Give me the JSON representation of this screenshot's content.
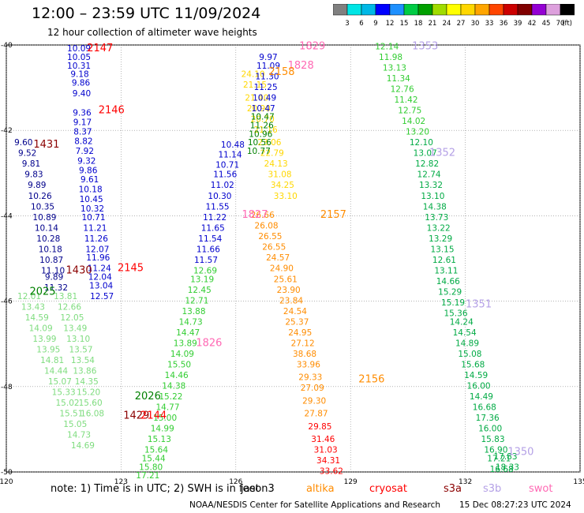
{
  "header": {
    "title": "12:00 – 23:59 UTC 11/09/2024",
    "subtitle": "12 hour collection of altimeter wave heights"
  },
  "colorbar": {
    "unit": "(ft)",
    "labels": [
      "3",
      "6",
      "9",
      "12",
      "15",
      "18",
      "21",
      "24",
      "27",
      "30",
      "33",
      "36",
      "39",
      "42",
      "45",
      "70"
    ],
    "colors": [
      "#808080",
      "#00e5e5",
      "#00b8e6",
      "#0000ff",
      "#1e90ff",
      "#00cc44",
      "#00a000",
      "#a0dc00",
      "#ffff00",
      "#ffd700",
      "#ffa500",
      "#ff4500",
      "#cc0000",
      "#800000",
      "#9400d3",
      "#dda0dd",
      "#000000"
    ]
  },
  "footer": {
    "note": "note:  1) Time is in UTC; 2) SWH is in feet",
    "missions": [
      {
        "name": "jason3",
        "color": "#000000"
      },
      {
        "name": "altika",
        "color": "#ff8c00"
      },
      {
        "name": "cryosat",
        "color": "#ff0000"
      },
      {
        "name": "s3a",
        "color": "#8b0000"
      },
      {
        "name": "s3b",
        "color": "#b4a0e6"
      },
      {
        "name": "swot",
        "color": "#ff69b4"
      }
    ],
    "credit": "NOAA/NESDIS Center for Satellite Applications and Research",
    "timestamp": "15 Dec 08:27:23 UTC 2024"
  },
  "chart_data": {
    "type": "scatter",
    "title": "12:00 – 23:59 UTC 11/09/2024",
    "subtitle": "12 hour collection of altimeter wave heights",
    "xlim": [
      120,
      135
    ],
    "ylim": [
      -50,
      -40
    ],
    "x_ticks": [
      120,
      123,
      126,
      129,
      132,
      135
    ],
    "y_ticks": [
      -40,
      -42,
      -44,
      -46,
      -48,
      -50
    ],
    "grid": true,
    "pass_labels": [
      {
        "text": "2147",
        "lon": 122.45,
        "lat": -40.15,
        "color": "#ff0000"
      },
      {
        "text": "2146",
        "lon": 122.75,
        "lat": -41.6,
        "color": "#ff0000"
      },
      {
        "text": "1431",
        "lon": 121.05,
        "lat": -42.4,
        "color": "#8b0000"
      },
      {
        "text": "1430",
        "lon": 121.9,
        "lat": -45.35,
        "color": "#8b0000"
      },
      {
        "text": "2145",
        "lon": 123.25,
        "lat": -45.3,
        "color": "#ff0000"
      },
      {
        "text": "2025",
        "lon": 120.95,
        "lat": -45.85,
        "color": "#008000"
      },
      {
        "text": "2026",
        "lon": 123.7,
        "lat": -48.3,
        "color": "#008000"
      },
      {
        "text": "1429",
        "lon": 123.4,
        "lat": -48.75,
        "color": "#8b0000"
      },
      {
        "text": "2144",
        "lon": 123.85,
        "lat": -48.75,
        "color": "#ff0000"
      },
      {
        "text": "1826",
        "lon": 125.3,
        "lat": -47.05,
        "color": "#ff69b4"
      },
      {
        "text": "1827",
        "lon": 126.5,
        "lat": -44.05,
        "color": "#ff69b4"
      },
      {
        "text": "1829",
        "lon": 128.0,
        "lat": -40.1,
        "color": "#ff69b4"
      },
      {
        "text": "1828",
        "lon": 127.7,
        "lat": -40.55,
        "color": "#ff69b4"
      },
      {
        "text": "2158",
        "lon": 127.2,
        "lat": -40.7,
        "color": "#ff8c00"
      },
      {
        "text": "2157",
        "lon": 128.55,
        "lat": -44.05,
        "color": "#ff8c00"
      },
      {
        "text": "2156",
        "lon": 129.55,
        "lat": -47.9,
        "color": "#ff8c00"
      },
      {
        "text": "1353",
        "lon": 130.95,
        "lat": -40.1,
        "color": "#b4a0e6"
      },
      {
        "text": "1352",
        "lon": 131.4,
        "lat": -42.6,
        "color": "#b4a0e6"
      },
      {
        "text": "1351",
        "lon": 132.35,
        "lat": -46.15,
        "color": "#b4a0e6"
      },
      {
        "text": "1350",
        "lon": 133.45,
        "lat": -49.6,
        "color": "#b4a0e6"
      }
    ],
    "series": [
      {
        "name": "jason3_pass_a",
        "color": "#0000cd",
        "lon": [
          121.9,
          121.9,
          121.9,
          121.92,
          121.95,
          121.97,
          121.98,
          121.99,
          122.0,
          122.02,
          122.05,
          122.1,
          122.14,
          122.18,
          122.2,
          122.22,
          122.25,
          122.28,
          122.32,
          122.35,
          122.38,
          122.4,
          122.43,
          122.45,
          122.48,
          122.5
        ],
        "lat": [
          -40.15,
          -40.35,
          -40.55,
          -40.75,
          -40.95,
          -41.2,
          -41.65,
          -41.88,
          -42.1,
          -42.32,
          -42.55,
          -42.78,
          -43.0,
          -43.22,
          -43.45,
          -43.68,
          -43.9,
          -44.1,
          -44.35,
          -44.6,
          -44.85,
          -45.05,
          -45.3,
          -45.5,
          -45.7,
          -45.95
        ],
        "swh": [
          10.09,
          10.05,
          10.31,
          9.18,
          9.86,
          9.4,
          9.36,
          9.17,
          8.37,
          8.82,
          7.92,
          9.32,
          9.86,
          9.61,
          10.18,
          10.45,
          10.32,
          10.71,
          11.21,
          11.26,
          12.07,
          11.96,
          11.24,
          12.04,
          13.04,
          12.57
        ]
      },
      {
        "name": "jason3_pass_b",
        "color": "#00008b",
        "lon": [
          120.45,
          120.55,
          120.65,
          120.72,
          120.8,
          120.88,
          120.95,
          121.0,
          121.05,
          121.1,
          121.15,
          121.18,
          121.22
        ],
        "lat": [
          -42.35,
          -42.6,
          -42.85,
          -43.1,
          -43.35,
          -43.6,
          -43.85,
          -44.1,
          -44.35,
          -44.6,
          -44.85,
          -45.1,
          -45.35
        ],
        "swh": [
          9.6,
          9.52,
          9.81,
          9.83,
          9.89,
          10.26,
          10.35,
          10.89,
          10.14,
          10.28,
          10.18,
          10.87,
          11.1
        ]
      },
      {
        "name": "s3a_pass_1430",
        "color": "#00008b",
        "lon": [
          121.25,
          121.3
        ],
        "lat": [
          -45.5,
          -45.75
        ],
        "swh": [
          9.89,
          11.32
        ]
      },
      {
        "name": "jason3_pass_c",
        "color": "#0000cd",
        "lon": [
          125.92,
          125.85,
          125.78,
          125.72,
          125.65,
          125.58,
          125.52,
          125.45,
          125.4,
          125.33
        ],
        "lat": [
          -42.4,
          -42.63,
          -42.87,
          -43.1,
          -43.35,
          -43.6,
          -43.85,
          -44.1,
          -44.35,
          -44.6
        ],
        "swh": [
          10.48,
          11.14,
          10.71,
          11.56,
          11.02,
          10.3,
          11.55,
          11.22,
          11.65,
          11.54
        ]
      },
      {
        "name": "jason3_pass_c_lower",
        "color": "#0000cd",
        "lon": [
          125.28,
          125.22
        ],
        "lat": [
          -44.85,
          -45.1
        ],
        "swh": [
          11.66,
          11.57
        ]
      },
      {
        "name": "pass_c_green",
        "color": "#32cd32",
        "lon": [
          125.2,
          125.12,
          125.05,
          124.98,
          124.9,
          124.82,
          124.75,
          124.68,
          124.6,
          124.52,
          124.45
        ],
        "lat": [
          -45.35,
          -45.55,
          -45.8,
          -46.05,
          -46.3,
          -46.55,
          -46.8,
          -47.05,
          -47.3,
          -47.55,
          -47.8
        ],
        "swh": [
          12.69,
          13.19,
          12.45,
          12.71,
          13.88,
          14.73,
          14.47,
          13.89,
          14.09,
          15.5,
          14.46
        ]
      },
      {
        "name": "pass_c_green_lower",
        "color": "#32cd32",
        "lon": [
          124.38,
          124.3,
          124.22,
          124.15,
          124.08,
          124.0,
          123.92,
          123.85,
          123.78,
          123.7
        ],
        "lat": [
          -48.05,
          -48.3,
          -48.55,
          -48.8,
          -49.05,
          -49.3,
          -49.55,
          -49.75,
          -49.95,
          -50.15
        ],
        "swh": [
          14.38,
          15.22,
          14.77,
          15.0,
          14.99,
          15.13,
          15.64,
          15.44,
          15.8,
          17.21
        ]
      },
      {
        "name": "altika_pass_2157",
        "color": "#ff8c00",
        "lon": [
          126.7,
          126.8,
          126.9,
          127.0,
          127.1,
          127.2,
          127.3,
          127.38,
          127.45,
          127.55,
          127.6,
          127.68
        ],
        "lat": [
          -44.05,
          -44.3,
          -44.55,
          -44.8,
          -45.05,
          -45.3,
          -45.55,
          -45.8,
          -46.05,
          -46.3,
          -46.55,
          -46.8
        ],
        "swh": [
          26.66,
          26.08,
          26.55,
          26.55,
          24.57,
          24.9,
          25.61,
          23.9,
          23.84,
          24.54,
          25.37,
          24.95
        ]
      },
      {
        "name": "altika_pass_2157_lower",
        "color": "#ff8c00",
        "lon": [
          127.75,
          127.8
        ],
        "lat": [
          -47.05,
          -47.3
        ],
        "swh": [
          27.12,
          38.68
        ]
      },
      {
        "name": "pass_2156",
        "color": "#ff8c00",
        "lon": [
          127.9,
          127.95,
          128.0,
          128.05,
          128.1
        ],
        "lat": [
          -47.55,
          -47.85,
          -48.1,
          -48.4,
          -48.7
        ],
        "swh": [
          33.96,
          29.33,
          27.09,
          29.3,
          27.87
        ]
      },
      {
        "name": "cryosat_pass",
        "color": "#ff0000",
        "lon": [
          128.2,
          128.28,
          128.35,
          128.42,
          128.5
        ],
        "lat": [
          -49.0,
          -49.3,
          -49.55,
          -49.8,
          -50.05
        ],
        "swh": [
          29.85,
          31.46,
          31.03,
          34.31,
          33.62
        ]
      },
      {
        "name": "altika_pass_2158",
        "color": "#ffd700",
        "lon": [
          126.45,
          126.5,
          126.55,
          126.6,
          126.7,
          126.78,
          126.88,
          126.95,
          127.05,
          127.15,
          127.22,
          127.3
        ],
        "lat": [
          -40.75,
          -41.0,
          -41.3,
          -41.55,
          -41.8,
          -42.05,
          -42.35,
          -42.6,
          -42.85,
          -43.1,
          -43.35,
          -43.6
        ],
        "swh": [
          24.1,
          21.15,
          21.4,
          20.9,
          20.7,
          21.16,
          23.06,
          22.79,
          24.13,
          31.08,
          34.25,
          33.1
        ]
      },
      {
        "name": "pass_1827_blue",
        "color": "#0000cd",
        "lon": [
          126.85,
          126.85,
          126.82,
          126.78,
          126.75,
          126.72
        ],
        "lat": [
          -40.35,
          -40.55,
          -40.8,
          -41.05,
          -41.3,
          -41.55
        ],
        "swh": [
          9.97,
          11.09,
          11.3,
          11.25,
          10.49,
          10.47
        ]
      },
      {
        "name": "pass_1827_green",
        "color": "#008000",
        "lon": [
          126.7,
          126.68,
          126.65,
          126.62,
          126.6
        ],
        "lat": [
          -41.75,
          -41.95,
          -42.15,
          -42.35,
          -42.55
        ],
        "swh": [
          10.47,
          11.26,
          10.96,
          10.56,
          10.77
        ]
      },
      {
        "name": "pass_1353",
        "color": "#32cd32",
        "lon": [
          129.95,
          130.05,
          130.15,
          130.25,
          130.35,
          130.45,
          130.55,
          130.65,
          130.75
        ],
        "lat": [
          -40.1,
          -40.35,
          -40.6,
          -40.85,
          -41.1,
          -41.35,
          -41.6,
          -41.85,
          -42.1
        ],
        "swh": [
          12.14,
          11.98,
          13.13,
          11.34,
          12.76,
          11.42,
          12.75,
          14.02,
          13.2
        ]
      },
      {
        "name": "pass_1352",
        "color": "#00aa44",
        "lon": [
          130.85,
          130.95,
          131.0,
          131.05,
          131.1,
          131.15,
          131.2,
          131.25,
          131.3,
          131.35,
          131.4,
          131.45
        ],
        "lat": [
          -42.35,
          -42.6,
          -42.85,
          -43.1,
          -43.35,
          -43.6,
          -43.85,
          -44.1,
          -44.35,
          -44.6,
          -44.85,
          -45.1
        ],
        "swh": [
          12.1,
          13.07,
          12.82,
          12.74,
          13.32,
          13.1,
          14.38,
          13.73,
          13.22,
          13.29,
          13.15,
          12.61
        ]
      },
      {
        "name": "pass_1352_lower",
        "color": "#00aa44",
        "lon": [
          131.5,
          131.55,
          131.6,
          131.68,
          131.75
        ],
        "lat": [
          -45.35,
          -45.6,
          -45.85,
          -46.1,
          -46.35
        ],
        "swh": [
          13.11,
          14.66,
          15.29,
          15.19,
          15.36
        ]
      },
      {
        "name": "pass_1351",
        "color": "#00aa44",
        "lon": [
          131.9,
          131.98,
          132.05,
          132.12,
          132.2,
          132.28,
          132.35,
          132.42,
          132.5,
          132.58,
          132.65,
          132.72,
          132.8,
          132.88,
          132.95
        ],
        "lat": [
          -46.55,
          -46.8,
          -47.05,
          -47.3,
          -47.55,
          -47.8,
          -48.05,
          -48.3,
          -48.55,
          -48.8,
          -49.05,
          -49.3,
          -49.55,
          -49.75,
          -50.0
        ],
        "swh": [
          14.24,
          14.54,
          14.89,
          15.08,
          15.68,
          14.59,
          16.0,
          14.49,
          16.68,
          17.36,
          16.0,
          15.83,
          16.9,
          17.21,
          16.68
        ]
      },
      {
        "name": "pass_1350_tail",
        "color": "#00aa44",
        "lon": [
          133.05,
          133.1
        ],
        "lat": [
          -49.7,
          -49.95
        ],
        "swh": [
          17.83,
          18.33
        ]
      },
      {
        "name": "pass_2025",
        "color": "#7fdc7f",
        "lon": [
          120.6,
          120.7,
          120.8,
          120.9,
          121.0,
          121.1,
          121.2,
          121.3,
          121.4,
          121.5,
          121.6,
          121.7,
          121.8,
          121.9,
          122.0
        ],
        "lat": [
          -45.95,
          -46.2,
          -46.45,
          -46.7,
          -46.95,
          -47.2,
          -47.45,
          -47.7,
          -47.95,
          -48.2,
          -48.45,
          -48.7,
          -48.95,
          -49.2,
          -49.45
        ],
        "swh": [
          12.01,
          13.43,
          14.59,
          14.09,
          13.99,
          13.95,
          14.81,
          14.44,
          15.07,
          15.33,
          15.02,
          15.51,
          15.05,
          14.73,
          14.69
        ]
      },
      {
        "name": "pass_2025_b",
        "color": "#7fdc7f",
        "lon": [
          121.55,
          121.65,
          121.72,
          121.8,
          121.88,
          121.95,
          122.0,
          122.05,
          122.1,
          122.15,
          122.2,
          122.25
        ],
        "lat": [
          -45.95,
          -46.2,
          -46.45,
          -46.7,
          -46.95,
          -47.2,
          -47.45,
          -47.7,
          -47.95,
          -48.2,
          -48.45,
          -48.7
        ],
        "swh": [
          13.81,
          12.66,
          12.05,
          13.49,
          13.1,
          13.57,
          13.54,
          13.86,
          14.35,
          15.2,
          15.6,
          16.08
        ]
      }
    ]
  }
}
